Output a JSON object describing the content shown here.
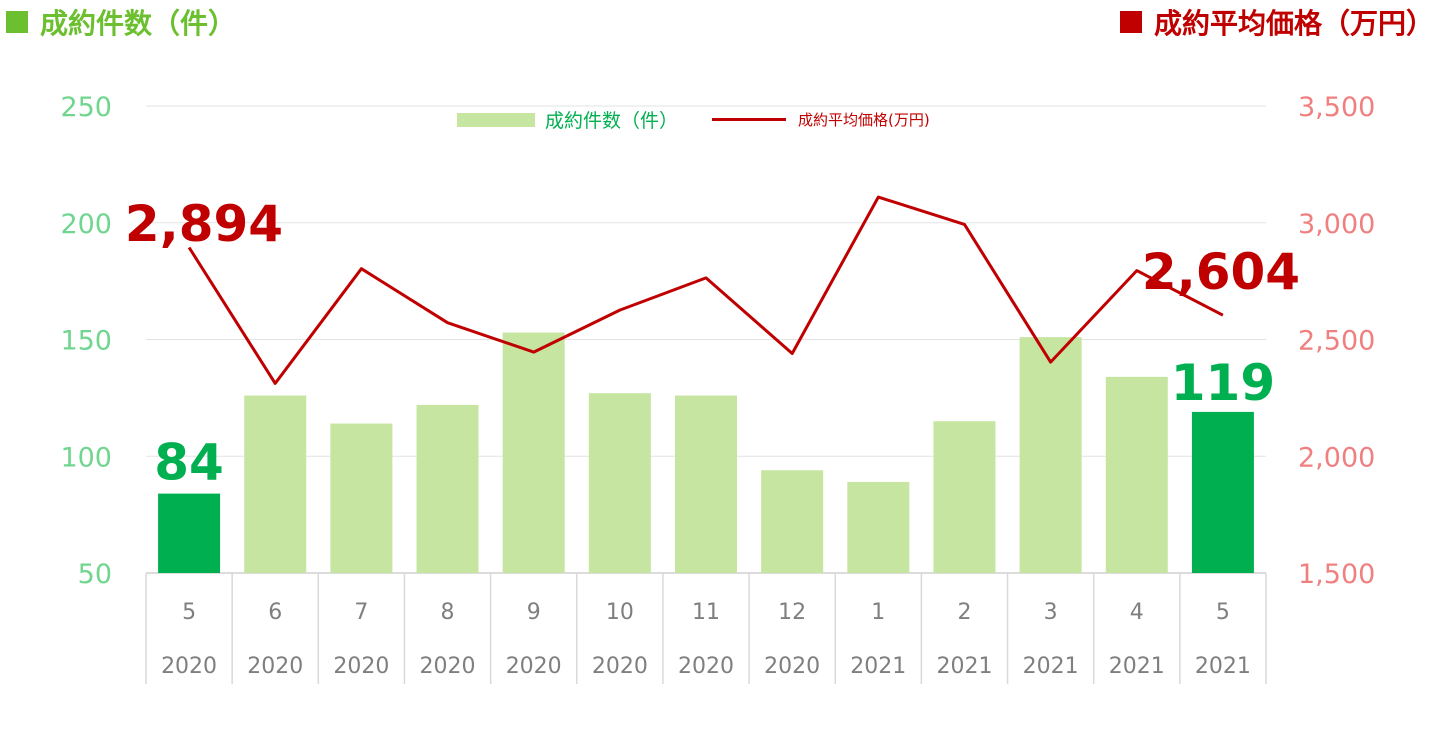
{
  "header": {
    "left_title": "成約件数（件）",
    "right_title": "成約平均価格（万円）"
  },
  "legend": {
    "bar_label": "成約件数（件）",
    "line_label": "成約平均価格(万円)"
  },
  "colors": {
    "bar_normal": "#c5e5a0",
    "bar_highlight": "#00b050",
    "line": "#c00000",
    "left_header": "#6cbf2e",
    "right_header": "#c00000",
    "left_tick": "#70d68f",
    "right_tick": "#f08080",
    "bar_label": "#00b050",
    "line_label": "#c00000",
    "grid": "#e3e3e3",
    "axis_text": "#7f7f7f"
  },
  "chart_data": {
    "type": "bar",
    "categories": [
      {
        "month": "5",
        "year": "2020"
      },
      {
        "month": "6",
        "year": "2020"
      },
      {
        "month": "7",
        "year": "2020"
      },
      {
        "month": "8",
        "year": "2020"
      },
      {
        "month": "9",
        "year": "2020"
      },
      {
        "month": "10",
        "year": "2020"
      },
      {
        "month": "11",
        "year": "2020"
      },
      {
        "month": "12",
        "year": "2020"
      },
      {
        "month": "1",
        "year": "2021"
      },
      {
        "month": "2",
        "year": "2021"
      },
      {
        "month": "3",
        "year": "2021"
      },
      {
        "month": "4",
        "year": "2021"
      },
      {
        "month": "5",
        "year": "2021"
      }
    ],
    "series": [
      {
        "name": "成約件数（件）",
        "type": "bar",
        "axis": "left",
        "values": [
          84,
          126,
          114,
          122,
          153,
          127,
          126,
          94,
          89,
          115,
          151,
          134,
          119
        ],
        "highlight": [
          0,
          12
        ]
      },
      {
        "name": "成約平均価格(万円)",
        "type": "line",
        "axis": "right",
        "values": [
          2894,
          2312,
          2803,
          2572,
          2446,
          2626,
          2764,
          2440,
          3110,
          2993,
          2403,
          2795,
          2604
        ]
      }
    ],
    "y_left": {
      "min": 50,
      "max": 250,
      "ticks": [
        "50",
        "100",
        "150",
        "200",
        "250"
      ]
    },
    "y_right": {
      "min": 1500,
      "max": 3500,
      "ticks": [
        "1,500",
        "2,000",
        "2,500",
        "3,000",
        "3,500"
      ]
    },
    "annotations": {
      "bar_first": "84",
      "bar_last": "119",
      "line_first": "2,894",
      "line_last": "2,604"
    },
    "grid": true
  }
}
